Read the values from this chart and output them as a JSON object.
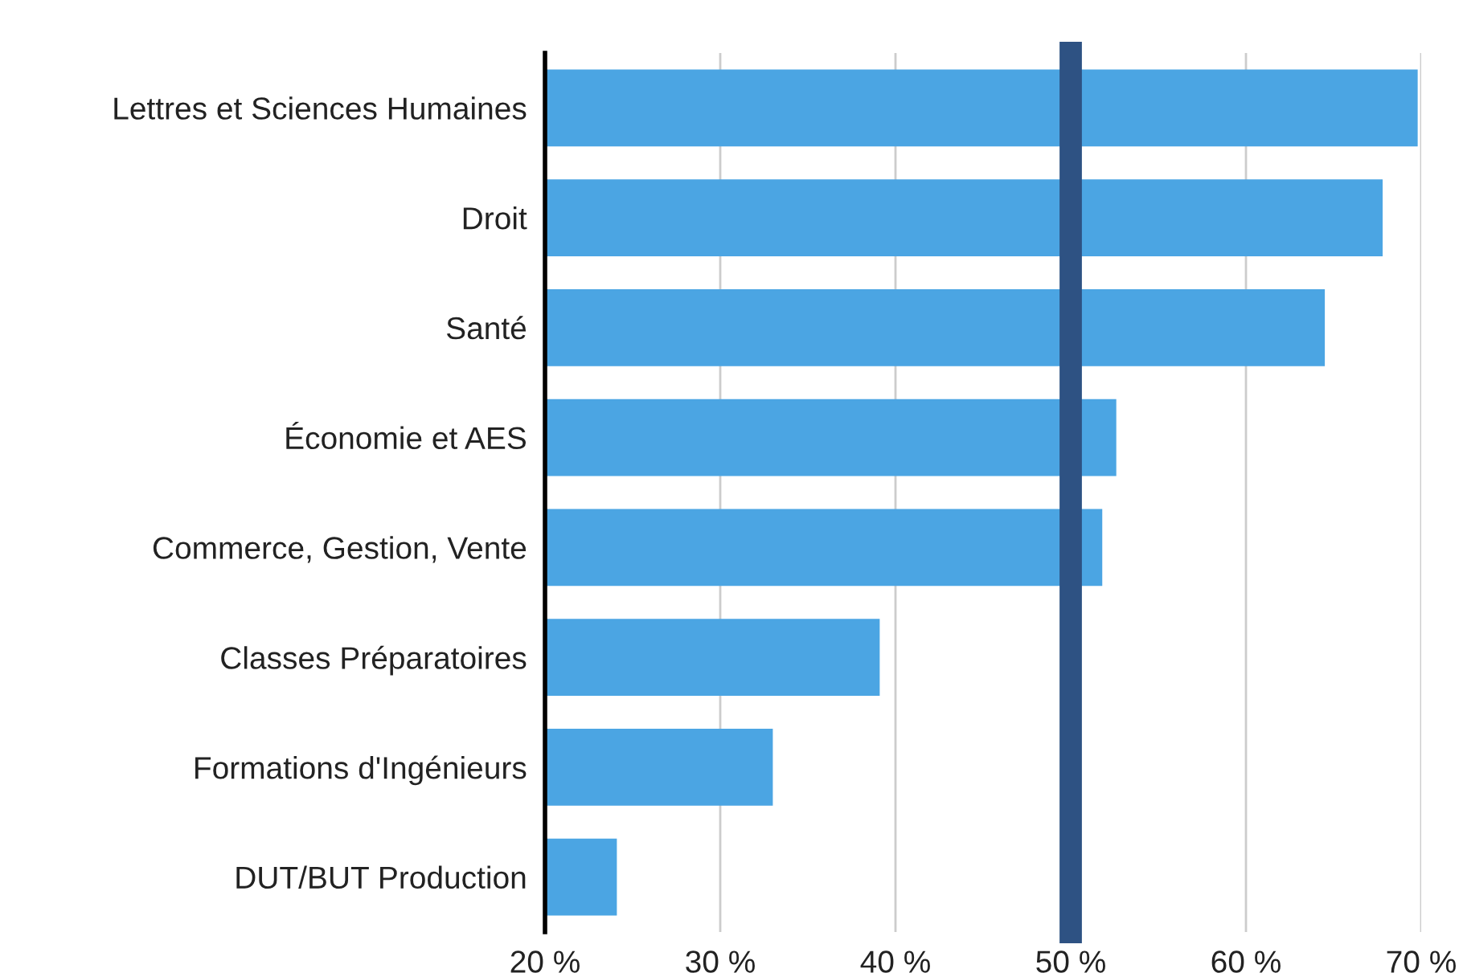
{
  "chart_data": {
    "type": "bar",
    "orientation": "horizontal",
    "categories": [
      "Lettres et Sciences Humaines",
      "Droit",
      "Santé",
      "Économie et AES",
      "Commerce, Gestion, Vente",
      "Classes Préparatoires",
      "Formations d'Ingénieurs",
      "DUT/BUT Production"
    ],
    "values": [
      69.8,
      67.8,
      64.5,
      52.6,
      51.8,
      39.1,
      33.0,
      24.1
    ],
    "color": "#4ba5e3",
    "xlim": [
      20,
      70
    ],
    "xticks": [
      {
        "value": 20,
        "label": "20 %"
      },
      {
        "value": 30,
        "label": "30 %"
      },
      {
        "value": 40,
        "label": "40 %"
      },
      {
        "value": 50,
        "label": "50 %"
      },
      {
        "value": 60,
        "label": "60 %"
      },
      {
        "value": 70,
        "label": "70 %"
      }
    ],
    "grid": "x",
    "ref_lines": [
      {
        "axis": "x",
        "value": 50,
        "color": "#2e5283"
      }
    ]
  }
}
